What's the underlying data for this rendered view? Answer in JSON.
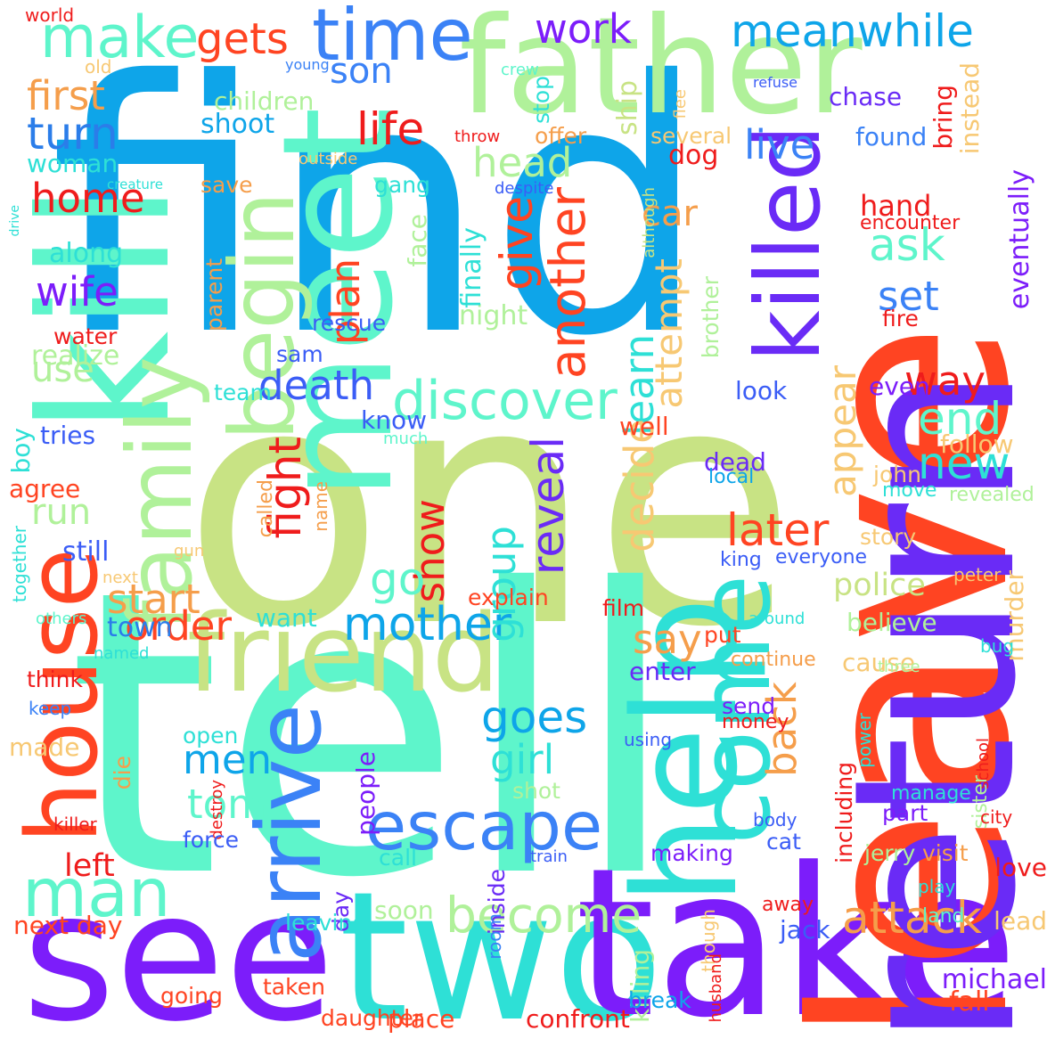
{
  "words": [
    {
      "text": "find",
      "color": "#0ea5e9",
      "vertical": false
    },
    {
      "text": "one",
      "color": "#c8e384",
      "vertical": false
    },
    {
      "text": "tell",
      "color": "#5ef5cb",
      "vertical": false
    },
    {
      "text": "father",
      "color": "#b0f19a",
      "vertical": false
    },
    {
      "text": "see",
      "color": "#7c1dfa",
      "vertical": false
    },
    {
      "text": "two",
      "color": "#2ee0d6",
      "vertical": false
    },
    {
      "text": "take",
      "color": "#7c1dfa",
      "vertical": false
    },
    {
      "text": "leave",
      "color": "#ff4422",
      "vertical": true
    },
    {
      "text": "return",
      "color": "#6a2bf6",
      "vertical": true
    },
    {
      "text": "kill",
      "color": "#5ef5cb",
      "vertical": true
    },
    {
      "text": "meet",
      "color": "#5ef5cb",
      "vertical": true
    },
    {
      "text": "friend",
      "color": "#c8e384",
      "vertical": false
    },
    {
      "text": "help",
      "color": "#2ee0d6",
      "vertical": true
    },
    {
      "text": "house",
      "color": "#ff4422",
      "vertical": true
    },
    {
      "text": "killed",
      "color": "#6a2bf6",
      "vertical": true
    },
    {
      "text": "family",
      "color": "#b0f19a",
      "vertical": true
    },
    {
      "text": "begin",
      "color": "#b0f19a",
      "vertical": true
    },
    {
      "text": "escape",
      "color": "#3b82f6",
      "vertical": false
    },
    {
      "text": "man",
      "color": "#5ef5cb",
      "vertical": false
    },
    {
      "text": "arrive",
      "color": "#3b82f6",
      "vertical": true
    },
    {
      "text": "come",
      "color": "#2ee0d6",
      "vertical": true
    },
    {
      "text": "time",
      "color": "#3b82f6",
      "vertical": false
    },
    {
      "text": "make",
      "color": "#5ef5cb",
      "vertical": false
    },
    {
      "text": "discover",
      "color": "#5ef5cb",
      "vertical": false
    },
    {
      "text": "mother",
      "color": "#0ea5e9",
      "vertical": false
    },
    {
      "text": "become",
      "color": "#b0f19a",
      "vertical": false
    },
    {
      "text": "attack",
      "color": "#f59e4b",
      "vertical": false
    },
    {
      "text": "meanwhile",
      "color": "#0ea5e9",
      "vertical": false
    },
    {
      "text": "gets",
      "color": "#ff4422",
      "vertical": false
    },
    {
      "text": "work",
      "color": "#7c1dfa",
      "vertical": false
    },
    {
      "text": "son",
      "color": "#3b82f6",
      "vertical": false
    },
    {
      "text": "first",
      "color": "#f59e4b",
      "vertical": false
    },
    {
      "text": "turn",
      "color": "#2b7de9",
      "vertical": false
    },
    {
      "text": "life",
      "color": "#ef1c1c",
      "vertical": false
    },
    {
      "text": "head",
      "color": "#b0f19a",
      "vertical": false
    },
    {
      "text": "live",
      "color": "#3b82f6",
      "vertical": false
    },
    {
      "text": "ask",
      "color": "#5ef5cb",
      "vertical": false
    },
    {
      "text": "set",
      "color": "#3b82f6",
      "vertical": false
    },
    {
      "text": "home",
      "color": "#ef1c1c",
      "vertical": false
    },
    {
      "text": "wife",
      "color": "#7c1dfa",
      "vertical": false
    },
    {
      "text": "give",
      "color": "#ff4422",
      "vertical": true
    },
    {
      "text": "another",
      "color": "#ff4422",
      "vertical": true
    },
    {
      "text": "plan",
      "color": "#ff4422",
      "vertical": true
    },
    {
      "text": "car",
      "color": "#f59e4b",
      "vertical": false
    },
    {
      "text": "attempt",
      "color": "#f7c873",
      "vertical": true
    },
    {
      "text": "learn",
      "color": "#2ee0d6",
      "vertical": true
    },
    {
      "text": "death",
      "color": "#3b5df6",
      "vertical": false
    },
    {
      "text": "way",
      "color": "#ef1c1c",
      "vertical": false
    },
    {
      "text": "end",
      "color": "#5ef5cb",
      "vertical": false
    },
    {
      "text": "new",
      "color": "#2ee0d6",
      "vertical": false
    },
    {
      "text": "appear",
      "color": "#f7c873",
      "vertical": true
    },
    {
      "text": "fight",
      "color": "#ef1c1c",
      "vertical": true
    },
    {
      "text": "show",
      "color": "#ef1c1c",
      "vertical": true
    },
    {
      "text": "group",
      "color": "#2ee0d6",
      "vertical": true
    },
    {
      "text": "reveal",
      "color": "#6a2bf6",
      "vertical": true
    },
    {
      "text": "decide",
      "color": "#f7c873",
      "vertical": true
    },
    {
      "text": "later",
      "color": "#ff4422",
      "vertical": false
    },
    {
      "text": "run",
      "color": "#b0f19a",
      "vertical": false
    },
    {
      "text": "use",
      "color": "#b0f19a",
      "vertical": false
    },
    {
      "text": "start",
      "color": "#f59e4b",
      "vertical": false
    },
    {
      "text": "go",
      "color": "#5ef5cb",
      "vertical": false
    },
    {
      "text": "order",
      "color": "#ff4422",
      "vertical": false
    },
    {
      "text": "goes",
      "color": "#0ea5e9",
      "vertical": false
    },
    {
      "text": "girl",
      "color": "#2ee0d6",
      "vertical": false
    },
    {
      "text": "men",
      "color": "#0ea5e9",
      "vertical": false
    },
    {
      "text": "tom",
      "color": "#5ef5cb",
      "vertical": false
    },
    {
      "text": "say",
      "color": "#f59e4b",
      "vertical": false
    },
    {
      "text": "back",
      "color": "#f59e4b",
      "vertical": true
    },
    {
      "text": "police",
      "color": "#c8e384",
      "vertical": false
    },
    {
      "text": "children",
      "color": "#b0f19a",
      "vertical": false
    },
    {
      "text": "shoot",
      "color": "#0ea5e9",
      "vertical": false
    },
    {
      "text": "woman",
      "color": "#2ee0d6",
      "vertical": false
    },
    {
      "text": "save",
      "color": "#f59e4b",
      "vertical": false
    },
    {
      "text": "gang",
      "color": "#2ee0d6",
      "vertical": false
    },
    {
      "text": "along",
      "color": "#2ee0d6",
      "vertical": false
    },
    {
      "text": "dog",
      "color": "#ef1c1c",
      "vertical": false
    },
    {
      "text": "stop",
      "color": "#2ee0d6",
      "vertical": true
    },
    {
      "text": "offer",
      "color": "#f59e4b",
      "vertical": false
    },
    {
      "text": "ship",
      "color": "#c8e384",
      "vertical": true
    },
    {
      "text": "several",
      "color": "#f7c873",
      "vertical": false
    },
    {
      "text": "chase",
      "color": "#6a2bf6",
      "vertical": false
    },
    {
      "text": "found",
      "color": "#3b82f6",
      "vertical": false
    },
    {
      "text": "bring",
      "color": "#ef1c1c",
      "vertical": true
    },
    {
      "text": "instead",
      "color": "#f7c873",
      "vertical": true
    },
    {
      "text": "hand",
      "color": "#ef1c1c",
      "vertical": false
    },
    {
      "text": "encounter",
      "color": "#ef1c1c",
      "vertical": false
    },
    {
      "text": "eventually",
      "color": "#7c1dfa",
      "vertical": true
    },
    {
      "text": "fire",
      "color": "#ef1c1c",
      "vertical": false
    },
    {
      "text": "rescue",
      "color": "#3b5df6",
      "vertical": false
    },
    {
      "text": "sam",
      "color": "#3b5df6",
      "vertical": false
    },
    {
      "text": "night",
      "color": "#b0f19a",
      "vertical": false
    },
    {
      "text": "finally",
      "color": "#2ee0d6",
      "vertical": true
    },
    {
      "text": "face",
      "color": "#b0f19a",
      "vertical": true
    },
    {
      "text": "parent",
      "color": "#f59e4b",
      "vertical": true
    },
    {
      "text": "realize",
      "color": "#b0f19a",
      "vertical": false
    },
    {
      "text": "water",
      "color": "#ef1c1c",
      "vertical": false
    },
    {
      "text": "brother",
      "color": "#b0f19a",
      "vertical": true
    },
    {
      "text": "look",
      "color": "#3b5df6",
      "vertical": false
    },
    {
      "text": "team",
      "color": "#2ee0d6",
      "vertical": false
    },
    {
      "text": "know",
      "color": "#3b5df6",
      "vertical": false
    },
    {
      "text": "tries",
      "color": "#3b5df6",
      "vertical": false
    },
    {
      "text": "boy",
      "color": "#2ee0d6",
      "vertical": true
    },
    {
      "text": "agree",
      "color": "#ff4422",
      "vertical": false
    },
    {
      "text": "much",
      "color": "#5ef5cb",
      "vertical": false
    },
    {
      "text": "well",
      "color": "#ff4422",
      "vertical": false
    },
    {
      "text": "even",
      "color": "#7c1dfa",
      "vertical": false
    },
    {
      "text": "follow",
      "color": "#f7c873",
      "vertical": false
    },
    {
      "text": "john",
      "color": "#f7c873",
      "vertical": false
    },
    {
      "text": "dead",
      "color": "#6a2bf6",
      "vertical": false
    },
    {
      "text": "local",
      "color": "#0ea5e9",
      "vertical": false
    },
    {
      "text": "move",
      "color": "#2ee0d6",
      "vertical": false
    },
    {
      "text": "revealed",
      "color": "#b0f19a",
      "vertical": false
    },
    {
      "text": "story",
      "color": "#f7c873",
      "vertical": false
    },
    {
      "text": "king",
      "color": "#3b5df6",
      "vertical": false
    },
    {
      "text": "everyone",
      "color": "#3b5df6",
      "vertical": false
    },
    {
      "text": "peter",
      "color": "#f7c873",
      "vertical": false
    },
    {
      "text": "called",
      "color": "#f59e4b",
      "vertical": true
    },
    {
      "text": "name",
      "color": "#f59e4b",
      "vertical": true
    },
    {
      "text": "still",
      "color": "#3b5df6",
      "vertical": false
    },
    {
      "text": "gun",
      "color": "#f7c873",
      "vertical": false
    },
    {
      "text": "next",
      "color": "#f7c873",
      "vertical": false
    },
    {
      "text": "together",
      "color": "#2ee0d6",
      "vertical": true
    },
    {
      "text": "want",
      "color": "#2ee0d6",
      "vertical": false
    },
    {
      "text": "explain",
      "color": "#ff4422",
      "vertical": false
    },
    {
      "text": "film",
      "color": "#ef1c1c",
      "vertical": false
    },
    {
      "text": "town",
      "color": "#2b7de9",
      "vertical": false
    },
    {
      "text": "others",
      "color": "#5ef5cb",
      "vertical": false
    },
    {
      "text": "around",
      "color": "#2ee0d6",
      "vertical": false
    },
    {
      "text": "believe",
      "color": "#b0f19a",
      "vertical": false
    },
    {
      "text": "murder",
      "color": "#f7c873",
      "vertical": true
    },
    {
      "text": "put",
      "color": "#ff4422",
      "vertical": false
    },
    {
      "text": "bug",
      "color": "#2ee0d6",
      "vertical": false
    },
    {
      "text": "cause",
      "color": "#f7c873",
      "vertical": false
    },
    {
      "text": "named",
      "color": "#2ee0d6",
      "vertical": false
    },
    {
      "text": "think",
      "color": "#ef1c1c",
      "vertical": false
    },
    {
      "text": "continue",
      "color": "#f59e4b",
      "vertical": false
    },
    {
      "text": "enter",
      "color": "#6a2bf6",
      "vertical": false
    },
    {
      "text": "send",
      "color": "#7c1dfa",
      "vertical": false
    },
    {
      "text": "three",
      "color": "#b0f19a",
      "vertical": false
    },
    {
      "text": "keep",
      "color": "#3b82f6",
      "vertical": false
    },
    {
      "text": "open",
      "color": "#2ee0d6",
      "vertical": false
    },
    {
      "text": "money",
      "color": "#ef1c1c",
      "vertical": false
    },
    {
      "text": "power",
      "color": "#2ee0d6",
      "vertical": true
    },
    {
      "text": "school",
      "color": "#ef1c1c",
      "vertical": true
    },
    {
      "text": "made",
      "color": "#f7c873",
      "vertical": false
    },
    {
      "text": "die",
      "color": "#f59e4b",
      "vertical": true
    },
    {
      "text": "people",
      "color": "#7c1dfa",
      "vertical": true
    },
    {
      "text": "using",
      "color": "#3b5df6",
      "vertical": false
    },
    {
      "text": "including",
      "color": "#ef1c1c",
      "vertical": true
    },
    {
      "text": "manage",
      "color": "#2ee0d6",
      "vertical": false
    },
    {
      "text": "sister",
      "color": "#b0f19a",
      "vertical": true
    },
    {
      "text": "destroy",
      "color": "#ef1c1c",
      "vertical": true
    },
    {
      "text": "shot",
      "color": "#b0f19a",
      "vertical": false
    },
    {
      "text": "force",
      "color": "#3b5df6",
      "vertical": false
    },
    {
      "text": "body",
      "color": "#3b5df6",
      "vertical": false
    },
    {
      "text": "part",
      "color": "#7c1dfa",
      "vertical": false
    },
    {
      "text": "city",
      "color": "#ef1c1c",
      "vertical": false
    },
    {
      "text": "killer",
      "color": "#ef1c1c",
      "vertical": false
    },
    {
      "text": "cat",
      "color": "#3b5df6",
      "vertical": false
    },
    {
      "text": "left",
      "color": "#ef1c1c",
      "vertical": false
    },
    {
      "text": "call",
      "color": "#2ee0d6",
      "vertical": false
    },
    {
      "text": "train",
      "color": "#3b5df6",
      "vertical": false
    },
    {
      "text": "making",
      "color": "#7c1dfa",
      "vertical": false
    },
    {
      "text": "jerry",
      "color": "#b0f19a",
      "vertical": false
    },
    {
      "text": "visit",
      "color": "#f59e4b",
      "vertical": false
    },
    {
      "text": "love",
      "color": "#ef1c1c",
      "vertical": false
    },
    {
      "text": "inside",
      "color": "#6a2bf6",
      "vertical": true
    },
    {
      "text": "day",
      "color": "#6a2bf6",
      "vertical": true
    },
    {
      "text": "play",
      "color": "#2ee0d6",
      "vertical": false
    },
    {
      "text": "next day",
      "color": "#ff4422",
      "vertical": false
    },
    {
      "text": "leaving",
      "color": "#2ee0d6",
      "vertical": false
    },
    {
      "text": "soon",
      "color": "#b0f19a",
      "vertical": false
    },
    {
      "text": "away",
      "color": "#ef1c1c",
      "vertical": false
    },
    {
      "text": "lead",
      "color": "#f7c873",
      "vertical": false
    },
    {
      "text": "room",
      "color": "#3b82f6",
      "vertical": true
    },
    {
      "text": "though",
      "color": "#f7c873",
      "vertical": true
    },
    {
      "text": "jack",
      "color": "#3b5df6",
      "vertical": false
    },
    {
      "text": "land",
      "color": "#5ef5cb",
      "vertical": false
    },
    {
      "text": "killing",
      "color": "#b0f19a",
      "vertical": true
    },
    {
      "text": "husband",
      "color": "#ef1c1c",
      "vertical": true
    },
    {
      "text": "michael",
      "color": "#7c1dfa",
      "vertical": false
    },
    {
      "text": "taken",
      "color": "#ff4422",
      "vertical": false
    },
    {
      "text": "going",
      "color": "#ff4422",
      "vertical": false
    },
    {
      "text": "break",
      "color": "#0ea5e9",
      "vertical": false
    },
    {
      "text": "fall",
      "color": "#ff4422",
      "vertical": false
    },
    {
      "text": "daughter",
      "color": "#ff4422",
      "vertical": false
    },
    {
      "text": "place",
      "color": "#ff4422",
      "vertical": false
    },
    {
      "text": "confront",
      "color": "#ef1c1c",
      "vertical": false
    },
    {
      "text": "world",
      "color": "#ef1c1c",
      "vertical": false
    },
    {
      "text": "old",
      "color": "#f7c873",
      "vertical": false
    },
    {
      "text": "young",
      "color": "#3b82f6",
      "vertical": false
    },
    {
      "text": "crew",
      "color": "#5ef5cb",
      "vertical": false
    },
    {
      "text": "flee",
      "color": "#f7c873",
      "vertical": true
    },
    {
      "text": "refuse",
      "color": "#3b5df6",
      "vertical": false
    },
    {
      "text": "throw",
      "color": "#ef1c1c",
      "vertical": false
    },
    {
      "text": "outside",
      "color": "#f7c873",
      "vertical": false
    },
    {
      "text": "creature",
      "color": "#2ee0d6",
      "vertical": false
    },
    {
      "text": "despite",
      "color": "#3b5df6",
      "vertical": false
    },
    {
      "text": "although",
      "color": "#c8e384",
      "vertical": true
    },
    {
      "text": "drive",
      "color": "#2ee0d6",
      "vertical": true
    }
  ]
}
